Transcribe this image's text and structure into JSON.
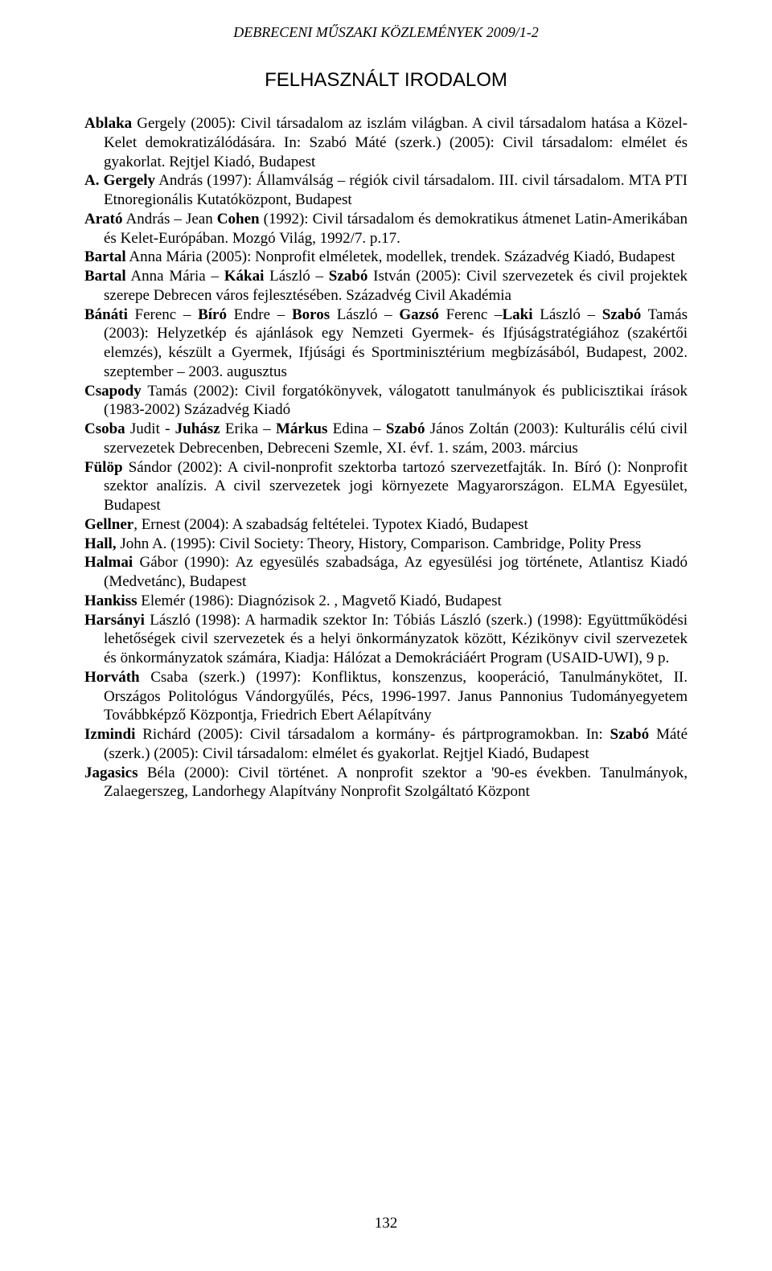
{
  "header": "DEBRECENI MŰSZAKI KÖZLEMÉNYEK 2009/1-2",
  "title": "FELHASZNÁLT IRODALOM",
  "entries": [
    {
      "b": "Ablaka",
      "t": " Gergely (2005): Civil társadalom az iszlám világban. A civil társadalom hatása a Közel-Kelet demokratizálódására. In: Szabó Máté (szerk.) (2005): Civil társadalom: elmélet és gyakorlat. Rejtjel Kiadó, Budapest"
    },
    {
      "b": "A. Gergely",
      "t": " András (1997): Államválság – régiók civil társadalom. III. civil társadalom. MTA PTI Etnoregionális Kutatóközpont, Budapest"
    },
    {
      "b": "Arató",
      "t2": " András – Jean ",
      "b2": "Cohen",
      "t": " (1992): Civil társadalom és demokratikus átmenet Latin-Amerikában és Kelet-Európában. Mozgó Világ, 1992/7. p.17."
    },
    {
      "b": "Bartal",
      "t": " Anna Mária (2005): Nonprofit elméletek, modellek, trendek. Századvég Kiadó, Budapest"
    },
    {
      "b": "Bartal",
      "t2": " Anna Mária – ",
      "b2": "Kákai",
      "t3": " László – ",
      "b3": "Szabó",
      "t": " István (2005): Civil szervezetek és civil projektek szerepe Debrecen város fejlesztésében. Századvég Civil Akadémia"
    },
    {
      "b": "Bánáti",
      "t2": " Ferenc – ",
      "b2": "Bíró",
      "t3": " Endre – ",
      "b3": "Boros",
      "t4": " László – ",
      "b4": "Gazsó",
      "t5": " Ferenc –",
      "b5": "Laki",
      "t6": " László – ",
      "b6": "Szabó",
      "t": " Tamás (2003): Helyzetkép és ajánlások egy Nemzeti Gyermek- és Ifjúságstratégiához (szakértői elemzés), készült a Gyermek, Ifjúsági és Sportminisztérium megbízásából, Budapest, 2002. szeptember – 2003. augusztus"
    },
    {
      "b": "Csapody",
      "t": " Tamás (2002): Civil forgatókönyvek, válogatott tanulmányok és publicisztikai írások (1983-2002) Századvég Kiadó"
    },
    {
      "b": "Csoba",
      "t2": " Judit - ",
      "b2": "Juhász",
      "t3": " Erika – ",
      "b3": "Márkus",
      "t4": " Edina – ",
      "b4": "Szabó",
      "t": " János Zoltán (2003): Kulturális célú civil szervezetek Debrecenben, Debreceni Szemle, XI. évf. 1. szám, 2003. március"
    },
    {
      "b": "Fülöp",
      "t": " Sándor (2002): A civil-nonprofit szektorba tartozó szervezetfajták. In. Bíró (): Nonprofit szektor analízis. A civil szervezetek jogi környezete Magyarországon. ELMA Egyesület, Budapest"
    },
    {
      "b": "Gellner",
      "t": ", Ernest (2004): A szabadság feltételei. Typotex Kiadó, Budapest"
    },
    {
      "b": "Hall,",
      "t": " John A. (1995): Civil Society: Theory, History, Comparison. Cambridge, Polity Press"
    },
    {
      "b": "Halmai",
      "t": " Gábor (1990): Az egyesülés szabadsága, Az egyesülési jog története, Atlantisz Kiadó (Medvetánc), Budapest"
    },
    {
      "b": "Hankiss",
      "t": " Elemér (1986): Diagnózisok 2. , Magvető Kiadó, Budapest"
    },
    {
      "b": "Harsányi",
      "t": " László (1998): A harmadik szektor In: Tóbiás László (szerk.) (1998): Együttműködési lehetőségek civil szervezetek és a helyi önkormányzatok között, Kézikönyv civil szervezetek és önkormányzatok számára, Kiadja: Hálózat a Demokráciáért Program (USAID-UWI), 9 p."
    },
    {
      "b": "Horváth",
      "t": " Csaba (szerk.) (1997): Konfliktus, konszenzus, kooperáció, Tanulmánykötet, II. Országos Politológus Vándorgyűlés, Pécs, 1996-1997. Janus Pannonius Tudományegyetem Továbbképző Központja, Friedrich Ebert Aélapítvány"
    },
    {
      "b": "Izmindi",
      "t2": " Richárd (2005): Civil társadalom a kormány- és pártprogramokban. In: ",
      "b2": "Szabó",
      "t": " Máté (szerk.) (2005): Civil társadalom: elmélet és gyakorlat. Rejtjel Kiadó, Budapest"
    },
    {
      "b": "Jagasics",
      "t": " Béla (2000): Civil történet. A nonprofit szektor a '90-es években. Tanulmányok, Zalaegerszeg, Landorhegy Alapítvány Nonprofit Szolgáltató Központ"
    }
  ],
  "pageNumber": "132"
}
